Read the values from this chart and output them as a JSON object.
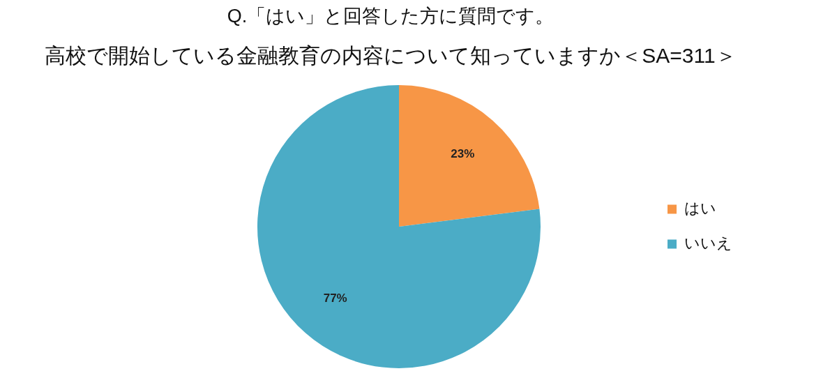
{
  "chart_data": {
    "type": "pie",
    "title": "Q.「はい」と回答した方に質問です。",
    "subtitle": "高校で開始している金融教育の内容について知っていますか＜SA=311＞",
    "categories": [
      "はい",
      "いいえ"
    ],
    "values": [
      23,
      77
    ],
    "colors": [
      "#f79646",
      "#4bacc6"
    ],
    "value_labels": [
      "23%",
      "77%"
    ],
    "legend": "right"
  }
}
